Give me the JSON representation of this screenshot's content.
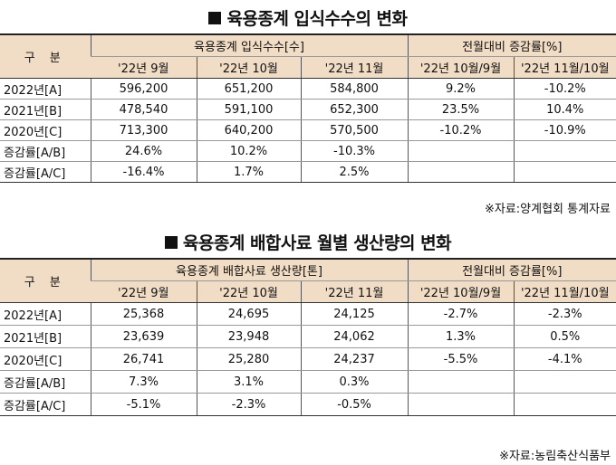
{
  "table1": {
    "title": "육용종계 입식수수의 변화",
    "col_group1": "육용종계 입식수수[수]",
    "col_group2": "전월대비 증감률[%]",
    "row_header": "구 분",
    "columns": [
      "'22년 9월",
      "'22년 10월",
      "'22년 11월",
      "'22년 10월/9월",
      "'22년 11월/10월"
    ],
    "rows": [
      {
        "label": "2022년[A]",
        "cells": [
          "596,200",
          "651,200",
          "584,800",
          "9.2%",
          "-10.2%"
        ]
      },
      {
        "label": "2021년[B]",
        "cells": [
          "478,540",
          "591,100",
          "652,300",
          "23.5%",
          "10.4%"
        ]
      },
      {
        "label": "2020년[C]",
        "cells": [
          "713,300",
          "640,200",
          "570,500",
          "-10.2%",
          "-10.9%"
        ]
      },
      {
        "label": "증감률[A/B]",
        "cells": [
          "24.6%",
          "10.2%",
          "-10.3%",
          "",
          ""
        ]
      },
      {
        "label": "증감률[A/C]",
        "cells": [
          "-16.4%",
          "1.7%",
          "2.5%",
          "",
          ""
        ]
      }
    ],
    "note": "※자료:양계협회 통계자료"
  },
  "table2": {
    "title": "육용종계 배합사료 월별 생산량의 변화",
    "col_group1": "육용종계 배합사료 생산량[톤]",
    "col_group2": "전월대비 증감률[%]",
    "row_header": "구 분",
    "columns": [
      "'22년 9월",
      "'22년 10월",
      "'22년 11월",
      "'22년 10월/9월",
      "'22년 11월/10월"
    ],
    "rows": [
      {
        "label": "2022년[A]",
        "cells": [
          "25,368",
          "24,695",
          "24,125",
          "-2.7%",
          "-2.3%"
        ]
      },
      {
        "label": "2021년[B]",
        "cells": [
          "23,639",
          "23,948",
          "24,062",
          "1.3%",
          "0.5%"
        ]
      },
      {
        "label": "2020년[C]",
        "cells": [
          "26,741",
          "25,280",
          "24,237",
          "-5.5%",
          "-4.1%"
        ]
      },
      {
        "label": "증감률[A/B]",
        "cells": [
          "7.3%",
          "3.1%",
          "0.3%",
          "",
          ""
        ]
      },
      {
        "label": "증감률[A/C]",
        "cells": [
          "-5.1%",
          "-2.3%",
          "-0.5%",
          "",
          ""
        ]
      }
    ],
    "note": "※자료:농림축산식품부"
  }
}
